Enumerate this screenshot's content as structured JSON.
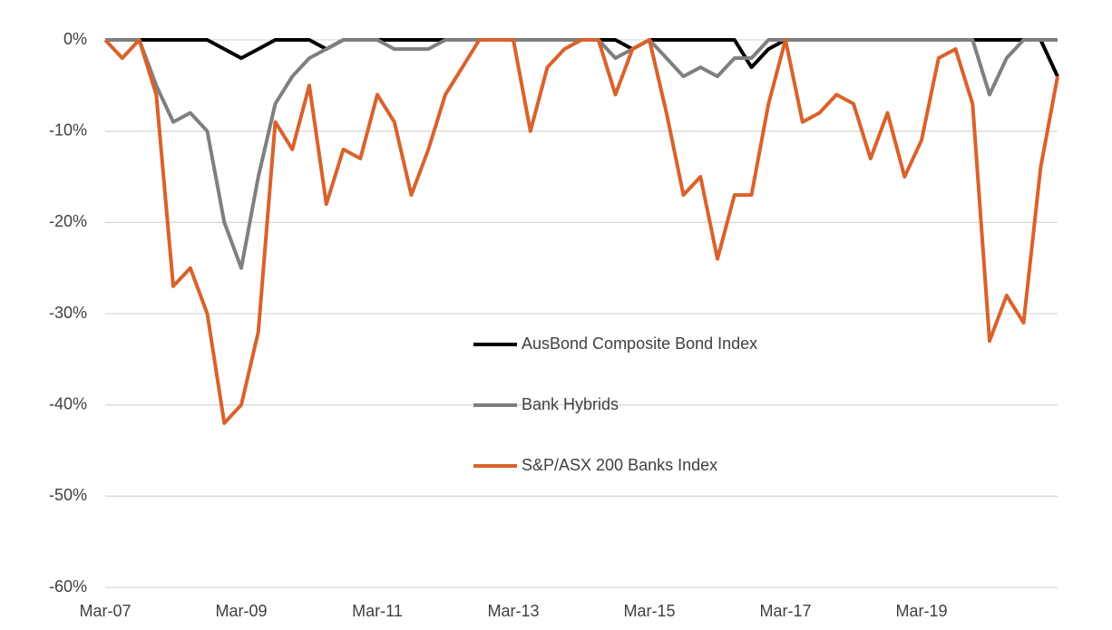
{
  "chart_data": {
    "type": "line",
    "categories": [
      "Mar-07",
      null,
      null,
      null,
      null,
      null,
      null,
      null,
      "Mar-09",
      null,
      null,
      null,
      null,
      null,
      null,
      null,
      "Mar-11",
      null,
      null,
      null,
      null,
      null,
      null,
      null,
      "Mar-13",
      null,
      null,
      null,
      null,
      null,
      null,
      null,
      "Mar-15",
      null,
      null,
      null,
      null,
      null,
      null,
      null,
      "Mar-17",
      null,
      null,
      null,
      null,
      null,
      null,
      null,
      "Mar-19",
      null,
      null,
      null,
      null,
      null,
      null,
      null,
      null
    ],
    "series": [
      {
        "name": "AusBond Composite Bond Index",
        "color": "#000000",
        "values": [
          0,
          0,
          0,
          0,
          0,
          0,
          0,
          -1,
          -2,
          -1,
          0,
          0,
          0,
          -1,
          0,
          0,
          0,
          0,
          0,
          0,
          0,
          0,
          0,
          0,
          0,
          0,
          0,
          0,
          0,
          0,
          0,
          -1,
          0,
          0,
          0,
          0,
          0,
          0,
          -3,
          -1,
          0,
          0,
          0,
          0,
          0,
          0,
          0,
          0,
          0,
          0,
          0,
          0,
          0,
          0,
          0,
          0,
          -4
        ]
      },
      {
        "name": "Bank Hybrids",
        "color": "#7f7f7f",
        "values": [
          0,
          0,
          0,
          -5,
          -9,
          -8,
          -10,
          -20,
          -25,
          -15,
          -7,
          -4,
          -2,
          -1,
          0,
          0,
          0,
          -1,
          -1,
          -1,
          0,
          0,
          0,
          0,
          0,
          0,
          0,
          0,
          0,
          0,
          -2,
          -1,
          0,
          -2,
          -4,
          -3,
          -4,
          -2,
          -2,
          0,
          0,
          0,
          0,
          0,
          0,
          0,
          0,
          0,
          0,
          0,
          0,
          0,
          -6,
          -2,
          0,
          0,
          0
        ]
      },
      {
        "name": "S&P/ASX 200 Banks Index",
        "color": "#d9622b",
        "values": [
          0,
          -2,
          0,
          -6,
          -27,
          -25,
          -30,
          -42,
          -40,
          -32,
          -9,
          -12,
          -5,
          -18,
          -12,
          -13,
          -6,
          -9,
          -17,
          -12,
          -6,
          -3,
          0,
          0,
          0,
          -10,
          -3,
          -1,
          0,
          0,
          -6,
          -1,
          0,
          -8,
          -17,
          -15,
          -24,
          -17,
          -17,
          -7,
          0,
          -9,
          -8,
          -6,
          -7,
          -13,
          -8,
          -15,
          -11,
          -2,
          -1,
          -7,
          -33,
          -28,
          -31,
          -14,
          -4
        ]
      }
    ],
    "ylim": [
      -60,
      0
    ],
    "yticks": [
      {
        "value": -60,
        "label": "-60%"
      },
      {
        "value": -50,
        "label": "-50%"
      },
      {
        "value": -40,
        "label": "-40%"
      },
      {
        "value": -30,
        "label": "-30%"
      },
      {
        "value": -20,
        "label": "-20%"
      },
      {
        "value": -10,
        "label": "-10%"
      },
      {
        "value": 0,
        "label": "0%"
      }
    ],
    "grid": true
  }
}
